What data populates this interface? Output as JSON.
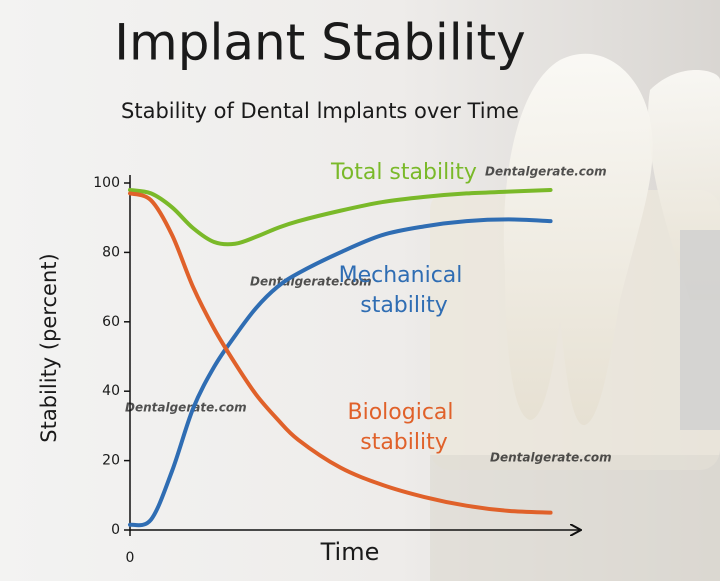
{
  "chart_data": {
    "type": "line",
    "title": "Implant Stability",
    "subtitle": "Stability of Dental lmplants over Time",
    "x_label": "Time",
    "y_label": "Stability (percent)",
    "watermark": "Dentalgerate.com",
    "x": [
      0,
      0.5,
      1,
      1.5,
      2,
      2.5,
      3,
      3.5,
      4,
      5,
      6,
      7,
      8,
      9,
      10
    ],
    "xlim": [
      0,
      10.7
    ],
    "xticks": [
      0
    ],
    "ylim": [
      0,
      100
    ],
    "yticks": [
      0,
      20,
      40,
      60,
      80,
      100
    ],
    "series": [
      {
        "name": "Total stability",
        "color": "#7ab929",
        "values": [
          98,
          97,
          93,
          87,
          83,
          82.5,
          84.5,
          87,
          89,
          92,
          94.5,
          96,
          97,
          97.5,
          98
        ]
      },
      {
        "name": "Mechanical stability",
        "color": "#2f6db3",
        "values": [
          1.5,
          3,
          17,
          35,
          47,
          56,
          64,
          70,
          74,
          80,
          85,
          87.5,
          89,
          89.5,
          89
        ]
      },
      {
        "name": "Biological stability",
        "color": "#e0612a",
        "values": [
          97,
          95,
          85,
          70,
          58,
          48,
          39,
          32,
          26,
          18,
          13,
          9.5,
          7,
          5.5,
          5
        ]
      }
    ]
  }
}
